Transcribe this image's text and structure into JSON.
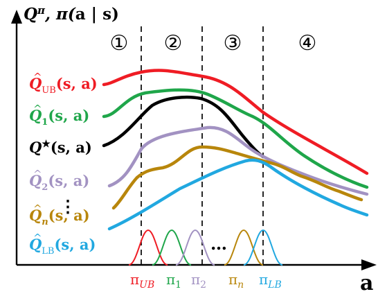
{
  "title": "Q^π, π(a | s)",
  "axis": {
    "x_label": "a"
  },
  "regions": [
    "①",
    "②",
    "③",
    "④"
  ],
  "curves": [
    {
      "id": "q-ub",
      "label": "Q̂_UB(s, a)",
      "color": "#ef1c24"
    },
    {
      "id": "q-1",
      "label": "Q̂_1(s, a)",
      "color": "#1fa64a"
    },
    {
      "id": "q-star",
      "label": "Q*(s, a)",
      "color": "#000000"
    },
    {
      "id": "q-2",
      "label": "Q̂_2(s, a)",
      "color": "#a292c2"
    },
    {
      "id": "q-n",
      "label": "Q̂_n(s, a)",
      "color": "#b8860b"
    },
    {
      "id": "q-lb",
      "label": "Q̂_LB(s, a)",
      "color": "#21a8e0"
    }
  ],
  "ellipses": {
    "vertical": "⋮",
    "horizontal": "…"
  },
  "policies": [
    {
      "id": "pi-ub",
      "label": "π_UB",
      "color": "#ef1c24"
    },
    {
      "id": "pi-1",
      "label": "π_1",
      "color": "#1fa64a"
    },
    {
      "id": "pi-2",
      "label": "π_2",
      "color": "#a292c2"
    },
    {
      "id": "pi-n",
      "label": "π_n",
      "color": "#b8860b"
    },
    {
      "id": "pi-lb",
      "label": "π_LB",
      "color": "#21a8e0"
    }
  ]
}
